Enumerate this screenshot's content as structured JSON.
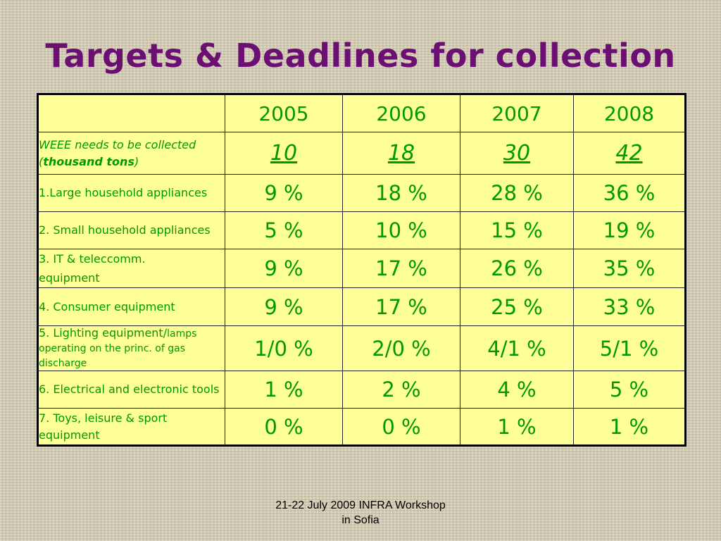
{
  "title": "Targets & Deadlines for collection",
  "table": {
    "years": [
      "2005",
      "2006",
      "2007",
      "2008"
    ],
    "weee": {
      "label_line1": "WEEE needs to be collected",
      "label_open": "(",
      "label_bold": "thousand tons",
      "label_close": ")",
      "values": [
        "10",
        "18",
        "30",
        "42"
      ]
    },
    "rows": [
      {
        "label": "1.Large household appliances",
        "values": [
          "9 %",
          "18 %",
          "28 %",
          "36 %"
        ]
      },
      {
        "label": "2. Small household appliances",
        "values": [
          "5 %",
          "10 %",
          "15 %",
          "19 %"
        ]
      },
      {
        "label_line1": "3. IT &  teleccomm.",
        "label_line2": "equipment",
        "values": [
          "9 %",
          "17 %",
          "26 %",
          "35 %"
        ]
      },
      {
        "label": "4. Consumer equipment",
        "values": [
          "9 %",
          "17 %",
          "25 %",
          "33 %"
        ]
      },
      {
        "label_main": "5. Lighting equipment/",
        "label_small": "lamps operating on the princ. of gas discharge",
        "values": [
          "1/0 %",
          "2/0 %",
          "4/1 %",
          "5/1 %"
        ]
      },
      {
        "label": "6. Electrical and electronic tools",
        "values": [
          "1 %",
          "2 %",
          "4 %",
          "5 %"
        ]
      },
      {
        "label": "7. Toys, leisure & sport equipment",
        "values": [
          "0 %",
          "0 %",
          "1 %",
          "1 %"
        ]
      }
    ]
  },
  "footer": {
    "line1": "21-22 July 2009 INFRA Workshop",
    "line2": "in Sofia"
  }
}
